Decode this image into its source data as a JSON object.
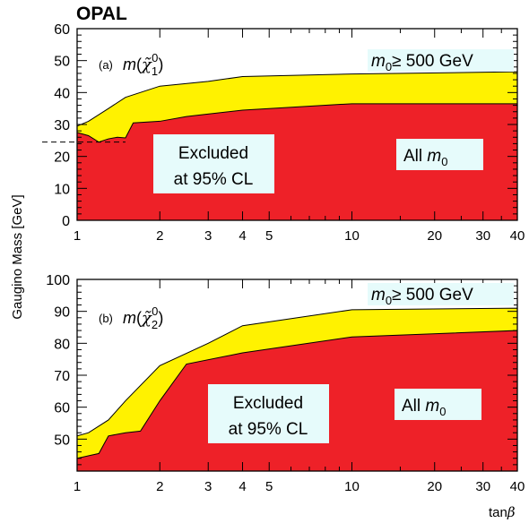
{
  "header": {
    "title": "OPAL"
  },
  "y_axis_label": "Gaugino Mass [GeV]",
  "x_axis_label": "tan β",
  "x_axis_label_parts": {
    "prefix": "tan",
    "symbol": "β"
  },
  "colors": {
    "excluded_all_m0": "#ee2128",
    "excluded_m0_ge_500": "#fff200",
    "text_box": "#e6fbfb"
  },
  "chart_data": [
    {
      "type": "area",
      "panel": "(a)",
      "title": "m(χ̃₁⁰)",
      "xlabel": "",
      "ylabel": "Gaugino Mass [GeV]",
      "x_scale": "log",
      "xlim": [
        1,
        40
      ],
      "ylim": [
        0,
        60
      ],
      "x_ticks": [
        1,
        2,
        3,
        4,
        5,
        10,
        20,
        30,
        40
      ],
      "y_ticks": [
        0,
        10,
        20,
        30,
        40,
        50,
        60
      ],
      "reference_line": {
        "y": 24.5,
        "style": "dashed"
      },
      "series": [
        {
          "name": "m₀ ≥ 500 GeV",
          "x": [
            1,
            1.1,
            1.3,
            1.5,
            2,
            3,
            4,
            10,
            40
          ],
          "y": [
            29.5,
            31,
            35,
            38.5,
            42,
            43.5,
            45,
            45.8,
            46.5
          ]
        },
        {
          "name": "All m₀",
          "x": [
            1,
            1.1,
            1.2,
            1.3,
            1.4,
            1.5,
            1.6,
            2,
            2.5,
            4,
            10,
            40
          ],
          "y": [
            27.5,
            26.5,
            24.5,
            25.5,
            26,
            25.8,
            30.5,
            31,
            32.5,
            34.5,
            36.5,
            36.5
          ]
        }
      ],
      "annotations": {
        "excluded_line1": "Excluded",
        "excluded_line2": "at 95% CL",
        "region_upper": "m₀≥ 500 GeV",
        "region_lower": "All m₀"
      }
    },
    {
      "type": "area",
      "panel": "(b)",
      "title": "m(χ̃₂⁰)",
      "xlabel": "tan β",
      "ylabel": "Gaugino Mass [GeV]",
      "x_scale": "log",
      "xlim": [
        1,
        40
      ],
      "ylim": [
        40,
        100
      ],
      "x_ticks": [
        1,
        2,
        3,
        4,
        5,
        10,
        20,
        30,
        40
      ],
      "y_ticks": [
        50,
        60,
        70,
        80,
        90,
        100
      ],
      "series": [
        {
          "name": "m₀ ≥ 500 GeV",
          "x": [
            1,
            1.1,
            1.3,
            1.5,
            2,
            3,
            4,
            10,
            40
          ],
          "y": [
            51,
            52,
            56,
            62,
            73,
            80,
            85.5,
            90.5,
            91
          ]
        },
        {
          "name": "All m₀",
          "x": [
            1,
            1.2,
            1.3,
            1.5,
            1.7,
            2,
            2.5,
            4,
            10,
            40
          ],
          "y": [
            44,
            45.5,
            51,
            52,
            52.5,
            62,
            73.5,
            77,
            82,
            84
          ]
        }
      ],
      "annotations": {
        "excluded_line1": "Excluded",
        "excluded_line2": "at 95% CL",
        "region_upper": "m₀≥ 500 GeV",
        "region_lower": "All m₀"
      }
    }
  ]
}
